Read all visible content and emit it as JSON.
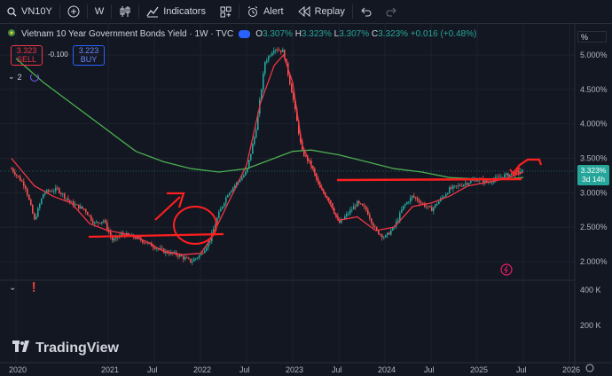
{
  "toolbar": {
    "symbol": "VN10Y",
    "interval": "W",
    "indicators_label": "Indicators",
    "alert_label": "Alert",
    "replay_label": "Replay"
  },
  "legend": {
    "title": "Vietnam 10 Year Government Bonds Yield · 1W · TVC",
    "open_label": "O",
    "open": "3.307%",
    "high_label": "H",
    "high": "3.323%",
    "low_label": "L",
    "low": "3.307%",
    "close_label": "C",
    "close": "3.323%",
    "change": "+0.016 (+0.48%)",
    "indicator_count": "2"
  },
  "trade": {
    "sell_price": "3.323",
    "sell_label": "SELL",
    "spread": "-0.100",
    "buy_price": "3.223",
    "buy_label": "BUY"
  },
  "price_axis": {
    "labels": [
      "5.000%",
      "4.500%",
      "4.000%",
      "3.500%",
      "3.000%",
      "2.500%",
      "2.000%"
    ],
    "current_price": "3.323%",
    "countdown": "3d 14h",
    "scale_mode": "%"
  },
  "volume_axis": {
    "labels": [
      "400 K",
      "200 K"
    ]
  },
  "time_axis": {
    "labels": [
      "2020",
      "2021",
      "Jul",
      "2022",
      "Jul",
      "2023",
      "Jul",
      "2024",
      "Jul",
      "2025",
      "Jul",
      "2026"
    ]
  },
  "branding": {
    "logo_text": "TradingView"
  },
  "colors": {
    "background": "#131722",
    "up": "#26a69a",
    "down": "#ef5350",
    "ma_long": "#4caf50",
    "ma_short": "#f23645",
    "annotation": "#ff1f1f"
  },
  "chart_data": {
    "type": "line",
    "title": "Vietnam 10 Year Government Bonds Yield · 1W · TVC",
    "ylim": [
      1.8,
      5.3
    ],
    "y_unit": "%",
    "series": [
      {
        "values": [
          [
            2019.95,
            3.35
          ],
          [
            2020.1,
            3.1
          ],
          [
            2020.2,
            2.6
          ],
          [
            2020.3,
            3.0
          ],
          [
            2020.45,
            3.05
          ],
          [
            2020.6,
            2.85
          ],
          [
            2020.75,
            2.75
          ],
          [
            2020.85,
            2.55
          ],
          [
            2020.95,
            2.6
          ],
          [
            2021.05,
            2.3
          ],
          [
            2021.15,
            2.4
          ],
          [
            2021.3,
            2.35
          ],
          [
            2021.45,
            2.25
          ],
          [
            2021.6,
            2.15
          ],
          [
            2021.75,
            2.1
          ],
          [
            2021.9,
            2.0
          ],
          [
            2022.0,
            2.1
          ],
          [
            2022.1,
            2.3
          ],
          [
            2022.2,
            2.7
          ],
          [
            2022.3,
            3.0
          ],
          [
            2022.4,
            3.15
          ],
          [
            2022.5,
            3.3
          ],
          [
            2022.6,
            3.9
          ],
          [
            2022.7,
            4.9
          ],
          [
            2022.8,
            5.1
          ],
          [
            2022.9,
            5.05
          ],
          [
            2023.0,
            4.4
          ],
          [
            2023.1,
            3.6
          ],
          [
            2023.2,
            3.4
          ],
          [
            2023.3,
            3.05
          ],
          [
            2023.4,
            2.9
          ],
          [
            2023.5,
            2.55
          ],
          [
            2023.6,
            2.7
          ],
          [
            2023.7,
            2.85
          ],
          [
            2023.8,
            2.75
          ],
          [
            2023.9,
            2.45
          ],
          [
            2024.0,
            2.35
          ],
          [
            2024.1,
            2.5
          ],
          [
            2024.2,
            2.8
          ],
          [
            2024.3,
            2.95
          ],
          [
            2024.4,
            2.85
          ],
          [
            2024.5,
            2.75
          ],
          [
            2024.6,
            2.9
          ],
          [
            2024.7,
            3.05
          ],
          [
            2024.8,
            3.1
          ],
          [
            2024.9,
            3.15
          ],
          [
            2025.0,
            3.2
          ],
          [
            2025.1,
            3.15
          ],
          [
            2025.2,
            3.2
          ],
          [
            2025.3,
            3.25
          ],
          [
            2025.4,
            3.28
          ],
          [
            2025.5,
            3.323
          ]
        ]
      },
      {
        "values": [
          [
            2019.95,
            3.5
          ],
          [
            2020.2,
            3.1
          ],
          [
            2020.4,
            2.95
          ],
          [
            2020.6,
            2.85
          ],
          [
            2020.8,
            2.55
          ],
          [
            2021.0,
            2.45
          ],
          [
            2021.2,
            2.4
          ],
          [
            2021.4,
            2.3
          ],
          [
            2021.6,
            2.15
          ],
          [
            2021.8,
            2.1
          ],
          [
            2022.0,
            2.12
          ],
          [
            2022.1,
            2.3
          ],
          [
            2022.3,
            2.85
          ],
          [
            2022.5,
            3.4
          ],
          [
            2022.65,
            4.3
          ],
          [
            2022.8,
            4.85
          ],
          [
            2022.9,
            5.0
          ],
          [
            2023.0,
            4.6
          ],
          [
            2023.1,
            3.7
          ],
          [
            2023.3,
            3.1
          ],
          [
            2023.5,
            2.6
          ],
          [
            2023.7,
            2.65
          ],
          [
            2023.9,
            2.45
          ],
          [
            2024.1,
            2.5
          ],
          [
            2024.3,
            2.8
          ],
          [
            2024.5,
            2.85
          ],
          [
            2024.7,
            2.95
          ],
          [
            2024.9,
            3.1
          ],
          [
            2025.1,
            3.15
          ],
          [
            2025.3,
            3.2
          ],
          [
            2025.5,
            3.3
          ]
        ]
      },
      {
        "values": [
          [
            2020.0,
            4.95
          ],
          [
            2020.3,
            4.6
          ],
          [
            2020.7,
            4.2
          ],
          [
            2021.0,
            3.9
          ],
          [
            2021.3,
            3.6
          ],
          [
            2021.6,
            3.45
          ],
          [
            2021.9,
            3.35
          ],
          [
            2022.2,
            3.3
          ],
          [
            2022.5,
            3.35
          ],
          [
            2022.8,
            3.5
          ],
          [
            2023.0,
            3.6
          ],
          [
            2023.2,
            3.62
          ],
          [
            2023.5,
            3.55
          ],
          [
            2023.8,
            3.45
          ],
          [
            2024.1,
            3.35
          ],
          [
            2024.4,
            3.3
          ],
          [
            2024.7,
            3.22
          ],
          [
            2025.0,
            3.2
          ],
          [
            2025.3,
            3.2
          ],
          [
            2025.5,
            3.22
          ]
        ]
      }
    ],
    "xlim": [
      2019.9,
      2026.2
    ],
    "xticks": [
      2020,
      2021,
      2021.5,
      2022,
      2022.5,
      2023,
      2023.5,
      2024,
      2024.5,
      2025,
      2025.5,
      2026
    ]
  }
}
